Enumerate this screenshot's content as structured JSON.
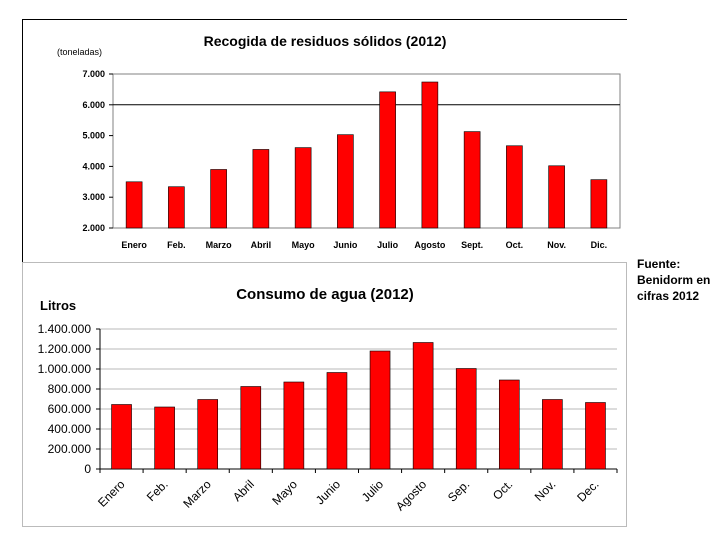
{
  "source_note": "Fuente: Benidorm en cifras 2012",
  "chart_data": [
    {
      "type": "bar",
      "title": "Recogida de residuos sólidos (2012)",
      "ylabel": "(toneladas)",
      "xlabel": "",
      "categories": [
        "Enero",
        "Feb.",
        "Marzo",
        "Abril",
        "Mayo",
        "Junio",
        "Julio",
        "Agosto",
        "Sept.",
        "Oct.",
        "Nov.",
        "Dic."
      ],
      "values": [
        3500,
        3340,
        3900,
        4550,
        4610,
        5030,
        6420,
        6740,
        5130,
        4670,
        4020,
        3570
      ],
      "ylim": [
        2000,
        7000
      ],
      "yticks": [
        "2.000",
        "3.000",
        "4.000",
        "5.000",
        "6.000",
        "7.000"
      ],
      "reference_line": 6000,
      "bar_color": "#ff0000",
      "grid": false
    },
    {
      "type": "bar",
      "title": "Consumo de agua (2012)",
      "ylabel": "Litros",
      "xlabel": "",
      "categories": [
        "Enero",
        "Feb.",
        "Marzo",
        "Abril",
        "Mayo",
        "Junio",
        "Julio",
        "Agosto",
        "Sep.",
        "Oct.",
        "Nov.",
        "Dec."
      ],
      "values": [
        645000,
        620000,
        695000,
        825000,
        870000,
        965000,
        1180000,
        1265000,
        1005000,
        890000,
        695000,
        665000
      ],
      "ylim": [
        0,
        1400000
      ],
      "yticks": [
        "0",
        "200.000",
        "400.000",
        "600.000",
        "800.000",
        "1.000.000",
        "1.200.000",
        "1.400.000"
      ],
      "bar_color": "#ff0000",
      "grid": true
    }
  ]
}
